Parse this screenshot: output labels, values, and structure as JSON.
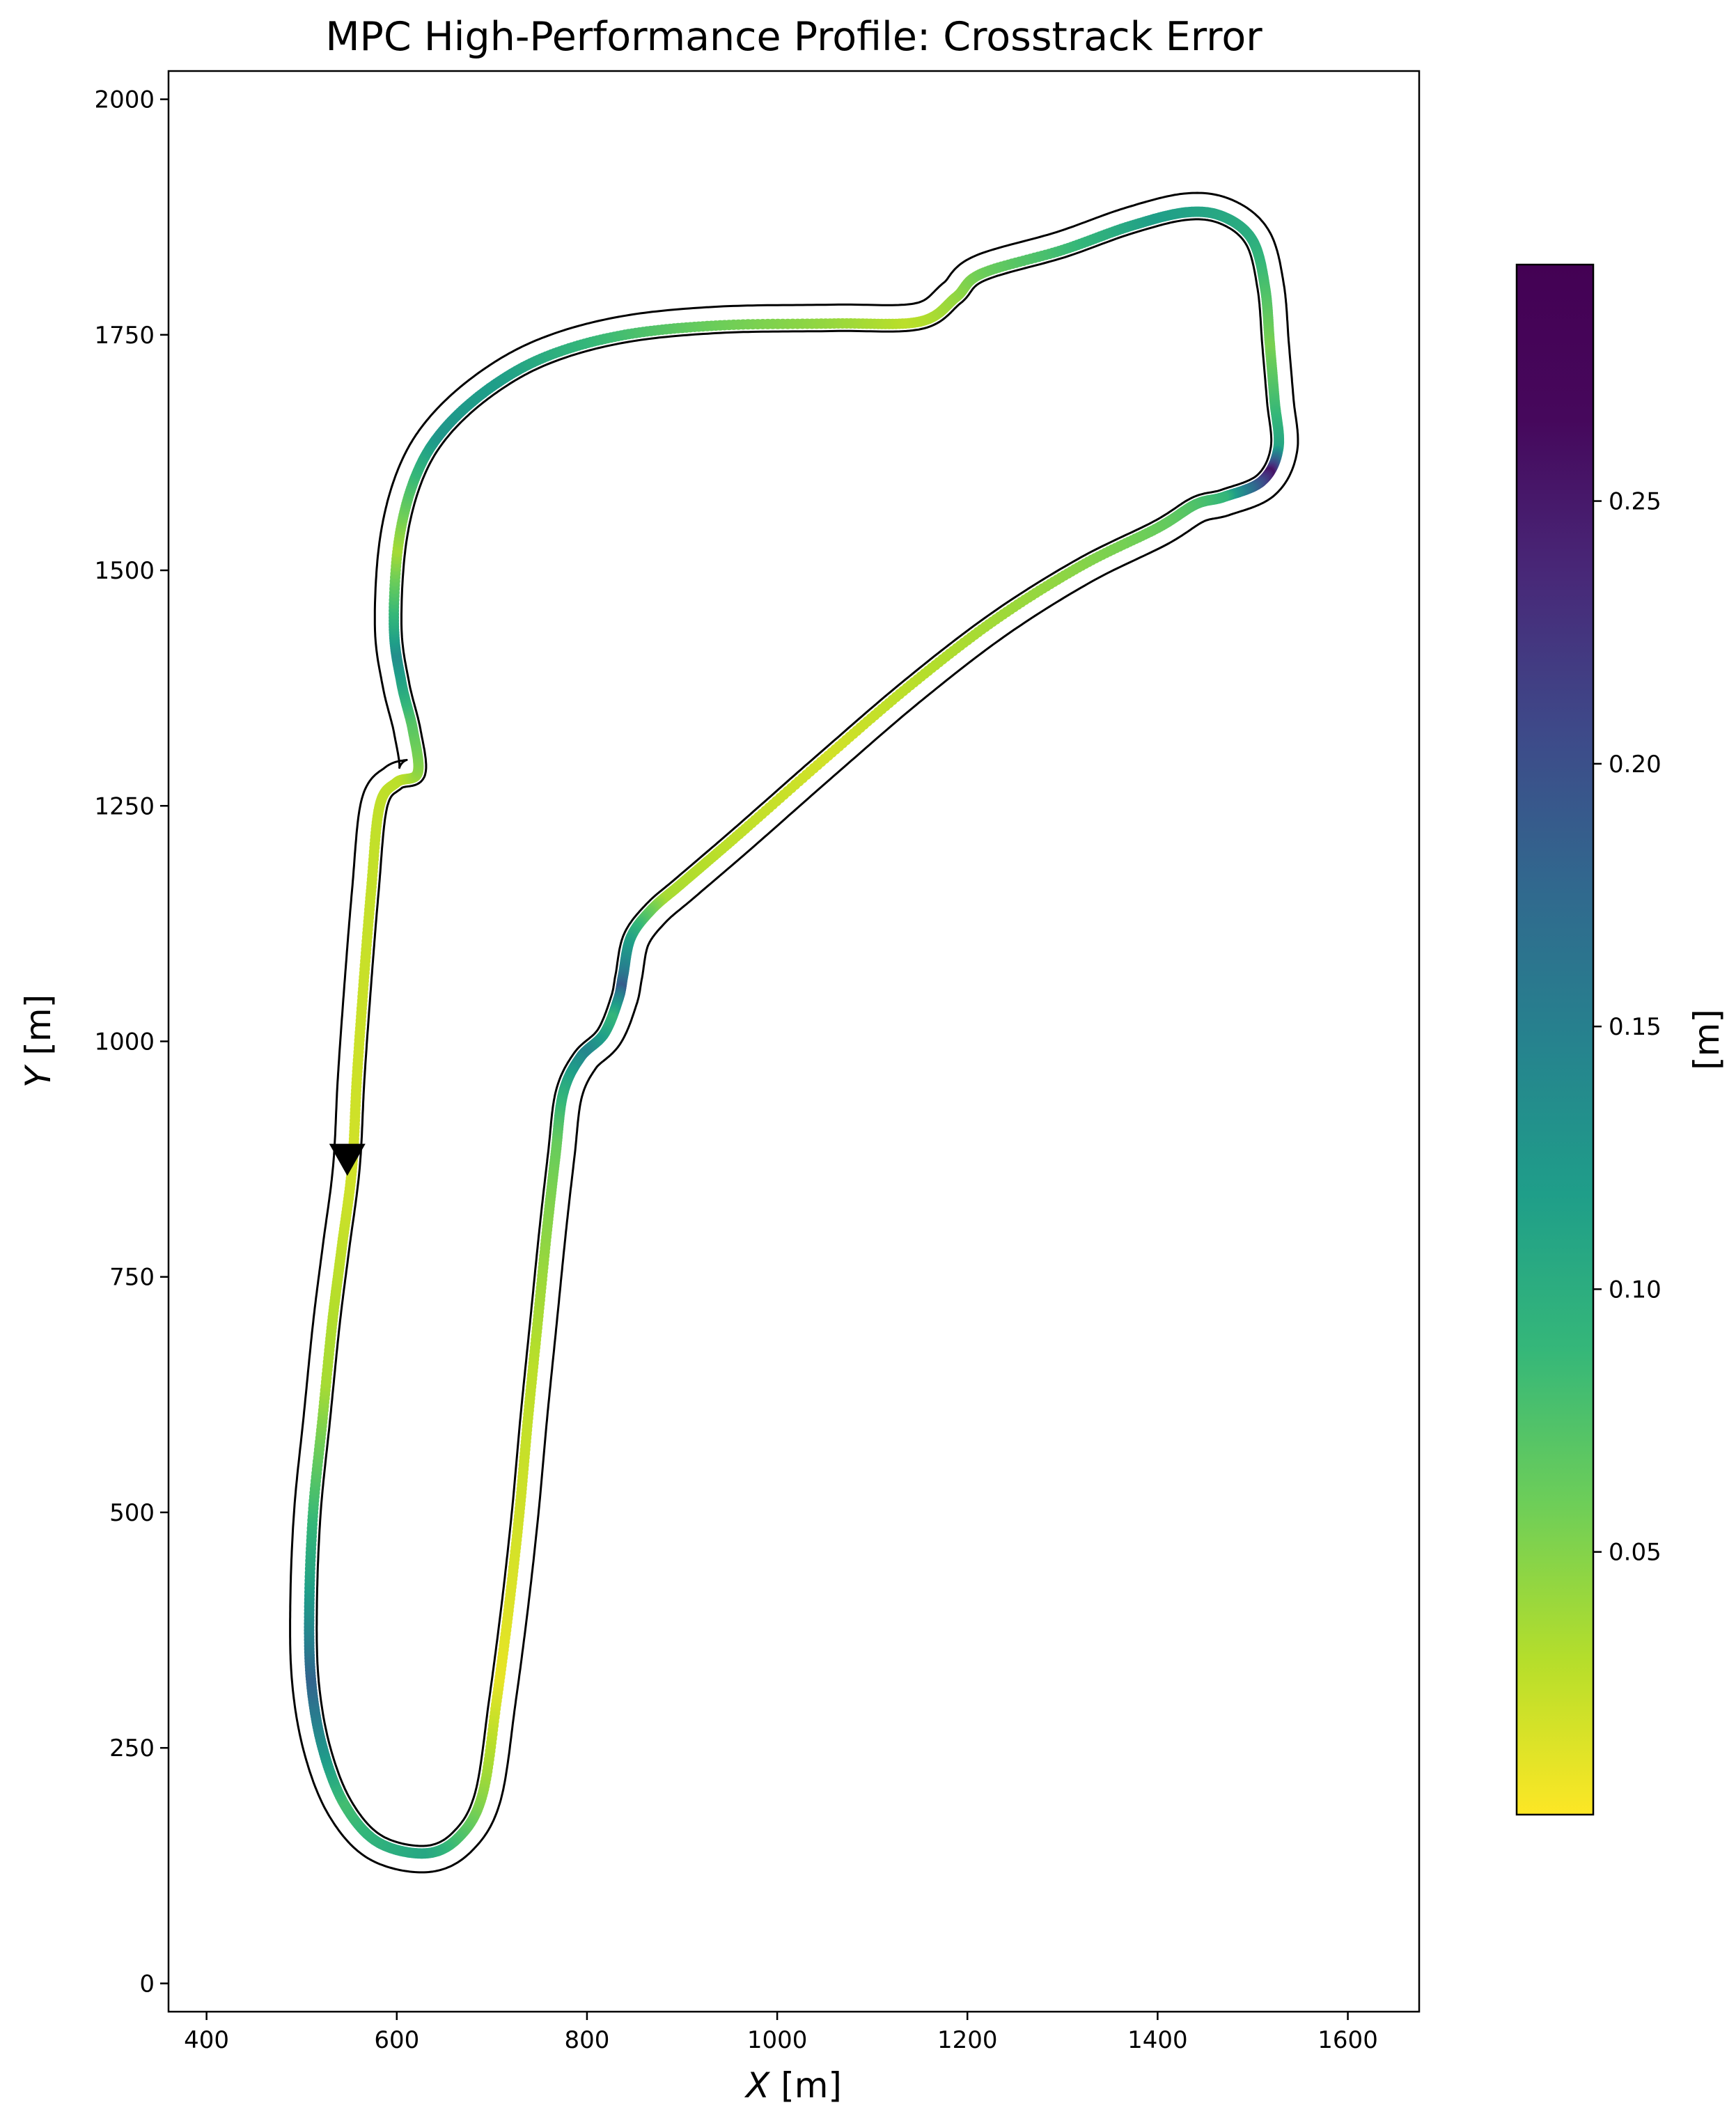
{
  "chart_data": {
    "type": "scatter",
    "title": "MPC High-Performance Profile: Crosstrack Error",
    "xlabel_var": "X",
    "xlabel_unit": "[m]",
    "ylabel_var": "Y",
    "ylabel_unit": "[m]",
    "xlim": [
      360,
      1675
    ],
    "ylim": [
      -30,
      2030
    ],
    "xticks": [
      400,
      600,
      800,
      1000,
      1200,
      1400,
      1600
    ],
    "yticks": [
      0,
      250,
      500,
      750,
      1000,
      1250,
      1500,
      1750,
      2000
    ],
    "xtick_labels": [
      "400",
      "600",
      "800",
      "1000",
      "1200",
      "1400",
      "1600"
    ],
    "ytick_labels": [
      "0",
      "250",
      "500",
      "750",
      "1000",
      "1250",
      "1500",
      "1750",
      "2000"
    ],
    "grid": false,
    "colormap": "viridis_r",
    "colorbar": {
      "label": "[m]",
      "range": [
        0.0,
        0.295
      ],
      "ticks": [
        0.05,
        0.1,
        0.15,
        0.2,
        0.25
      ],
      "tick_labels": [
        "0.05",
        "0.10",
        "0.15",
        "0.20",
        "0.25"
      ]
    },
    "centerline": [
      [
        553,
        866
      ],
      [
        558,
        960
      ],
      [
        565,
        1060
      ],
      [
        573,
        1160
      ],
      [
        582,
        1250
      ],
      [
        600,
        1275
      ],
      [
        622,
        1285
      ],
      [
        617,
        1330
      ],
      [
        605,
        1380
      ],
      [
        597,
        1440
      ],
      [
        602,
        1530
      ],
      [
        620,
        1600
      ],
      [
        650,
        1650
      ],
      [
        700,
        1695
      ],
      [
        760,
        1728
      ],
      [
        840,
        1750
      ],
      [
        940,
        1760
      ],
      [
        1060,
        1762
      ],
      [
        1150,
        1764
      ],
      [
        1188,
        1790
      ],
      [
        1215,
        1815
      ],
      [
        1300,
        1840
      ],
      [
        1370,
        1865
      ],
      [
        1430,
        1880
      ],
      [
        1470,
        1875
      ],
      [
        1500,
        1850
      ],
      [
        1513,
        1800
      ],
      [
        1518,
        1740
      ],
      [
        1523,
        1680
      ],
      [
        1527,
        1630
      ],
      [
        1510,
        1595
      ],
      [
        1470,
        1578
      ],
      [
        1440,
        1570
      ],
      [
        1400,
        1545
      ],
      [
        1320,
        1505
      ],
      [
        1230,
        1448
      ],
      [
        1140,
        1378
      ],
      [
        1050,
        1300
      ],
      [
        960,
        1220
      ],
      [
        900,
        1168
      ],
      [
        868,
        1140
      ],
      [
        846,
        1110
      ],
      [
        838,
        1070
      ],
      [
        833,
        1045
      ],
      [
        818,
        1008
      ],
      [
        793,
        983
      ],
      [
        775,
        945
      ],
      [
        767,
        880
      ],
      [
        758,
        800
      ],
      [
        748,
        700
      ],
      [
        738,
        600
      ],
      [
        729,
        500
      ],
      [
        718,
        400
      ],
      [
        705,
        300
      ],
      [
        690,
        200
      ],
      [
        665,
        155
      ],
      [
        630,
        138
      ],
      [
        580,
        150
      ],
      [
        545,
        190
      ],
      [
        522,
        250
      ],
      [
        510,
        320
      ],
      [
        508,
        400
      ],
      [
        512,
        500
      ],
      [
        522,
        600
      ],
      [
        532,
        700
      ],
      [
        542,
        780
      ],
      [
        553,
        866
      ]
    ],
    "error_profile": [
      [
        0.0,
        0.02
      ],
      [
        0.08,
        0.03
      ],
      [
        0.11,
        0.08
      ],
      [
        0.13,
        0.15
      ],
      [
        0.15,
        0.04
      ],
      [
        0.18,
        0.14
      ],
      [
        0.2,
        0.13
      ],
      [
        0.24,
        0.07
      ],
      [
        0.27,
        0.03
      ],
      [
        0.3,
        0.06
      ],
      [
        0.34,
        0.13
      ],
      [
        0.38,
        0.11
      ],
      [
        0.41,
        0.06
      ],
      [
        0.44,
        0.12
      ],
      [
        0.45,
        0.28
      ],
      [
        0.47,
        0.1
      ],
      [
        0.52,
        0.05
      ],
      [
        0.56,
        0.02
      ],
      [
        0.6,
        0.04
      ],
      [
        0.63,
        0.15
      ],
      [
        0.645,
        0.21
      ],
      [
        0.66,
        0.1
      ],
      [
        0.68,
        0.16
      ],
      [
        0.71,
        0.07
      ],
      [
        0.75,
        0.03
      ],
      [
        0.8,
        0.01
      ],
      [
        0.85,
        0.12
      ],
      [
        0.88,
        0.09
      ],
      [
        0.91,
        0.2
      ],
      [
        0.93,
        0.12
      ],
      [
        0.96,
        0.04
      ],
      [
        1.0,
        0.02
      ]
    ],
    "start_marker": {
      "x": 548,
      "y": 875,
      "shape": "triangle-down"
    }
  }
}
